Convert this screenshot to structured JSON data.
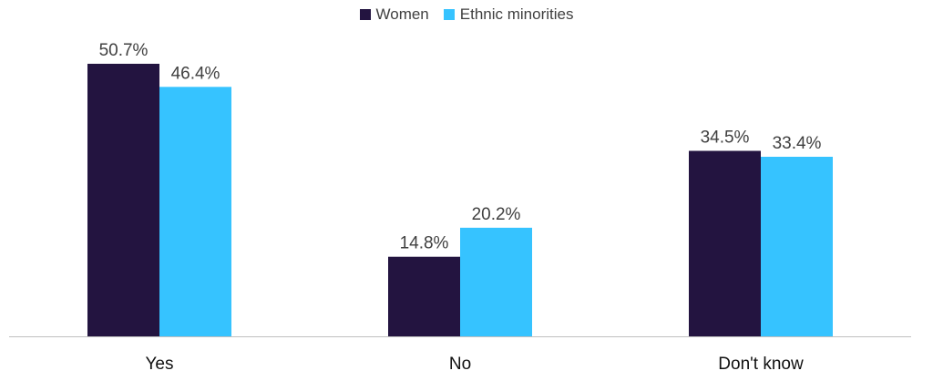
{
  "colors": {
    "women": "#231440",
    "ethnic": "#36C3FF",
    "axis": "#BFBFBF",
    "label": "#404040",
    "category": "#111111"
  },
  "chart_data": {
    "type": "bar",
    "categories": [
      "Yes",
      "No",
      "Don't know"
    ],
    "series": [
      {
        "name": "Women",
        "values": [
          50.7,
          14.8,
          34.5
        ],
        "labels": [
          "50.7%",
          "14.8%",
          "34.5%"
        ]
      },
      {
        "name": "Ethnic minorities",
        "values": [
          46.4,
          20.2,
          33.4
        ],
        "labels": [
          "46.4%",
          "20.2%",
          "33.4%"
        ]
      }
    ],
    "ylim": [
      0,
      60
    ],
    "legend": "top-center",
    "grid": false
  }
}
